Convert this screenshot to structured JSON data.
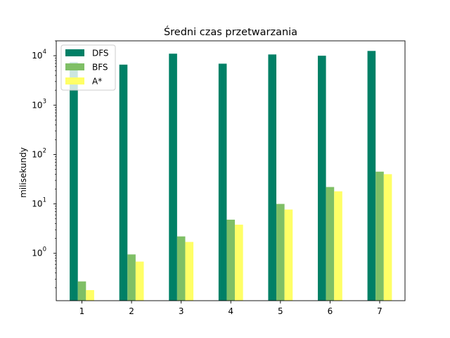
{
  "chart_data": {
    "type": "bar",
    "title": "Średni czas przetwarzania",
    "xlabel": "",
    "ylabel": "milisekundy",
    "yscale": "log",
    "ylim": [
      0.11,
      20000
    ],
    "categories": [
      "1",
      "2",
      "3",
      "4",
      "5",
      "6",
      "7"
    ],
    "series": [
      {
        "name": "DFS",
        "color": "#008066",
        "values": [
          7400,
          6600,
          11000,
          6900,
          10600,
          10000,
          12500
        ]
      },
      {
        "name": "BFS",
        "color": "#7fbf66",
        "values": [
          0.27,
          0.95,
          2.2,
          4.8,
          10,
          22,
          45
        ]
      },
      {
        "name": "A*",
        "color": "#ffff66",
        "values": [
          0.18,
          0.68,
          1.7,
          3.8,
          7.7,
          18,
          40
        ]
      }
    ],
    "y_ticks": [
      {
        "value": 1,
        "base": "10",
        "exp": "0"
      },
      {
        "value": 10,
        "base": "10",
        "exp": "1"
      },
      {
        "value": 100,
        "base": "10",
        "exp": "2"
      },
      {
        "value": 1000,
        "base": "10",
        "exp": "3"
      },
      {
        "value": 10000,
        "base": "10",
        "exp": "4"
      }
    ],
    "legend_position": "top-left",
    "grid": false
  }
}
